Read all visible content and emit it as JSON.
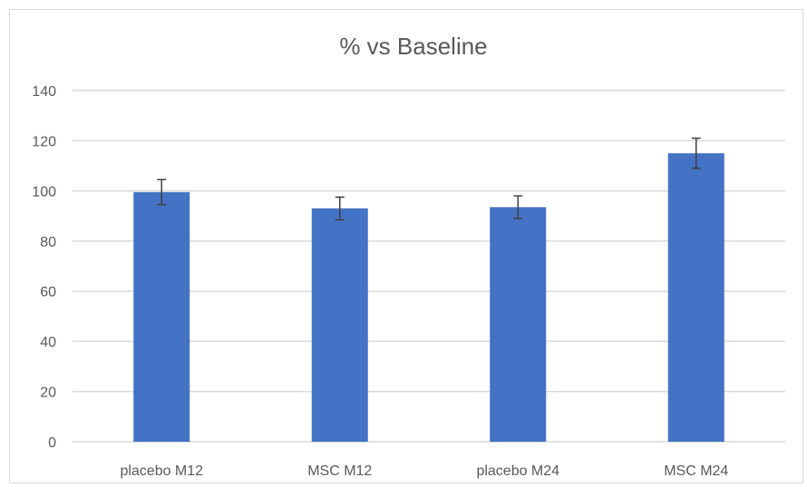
{
  "chart_data": {
    "type": "bar",
    "title": "% vs Baseline",
    "xlabel": "",
    "ylabel": "",
    "categories": [
      "placebo M12",
      "MSC M12",
      "placebo M24",
      "MSC M24"
    ],
    "values": [
      99.5,
      93,
      93.5,
      115
    ],
    "error": [
      5,
      4.5,
      4.5,
      6
    ],
    "ylim": [
      0,
      140
    ],
    "yticks": [
      "0",
      "20",
      "40",
      "60",
      "80",
      "100",
      "120",
      "140"
    ],
    "grid": true,
    "legend": "none",
    "colors": {
      "bar": "#4472C4",
      "grid": "#d9d9d9",
      "error_bar": "#404040",
      "text": "#595959"
    }
  }
}
